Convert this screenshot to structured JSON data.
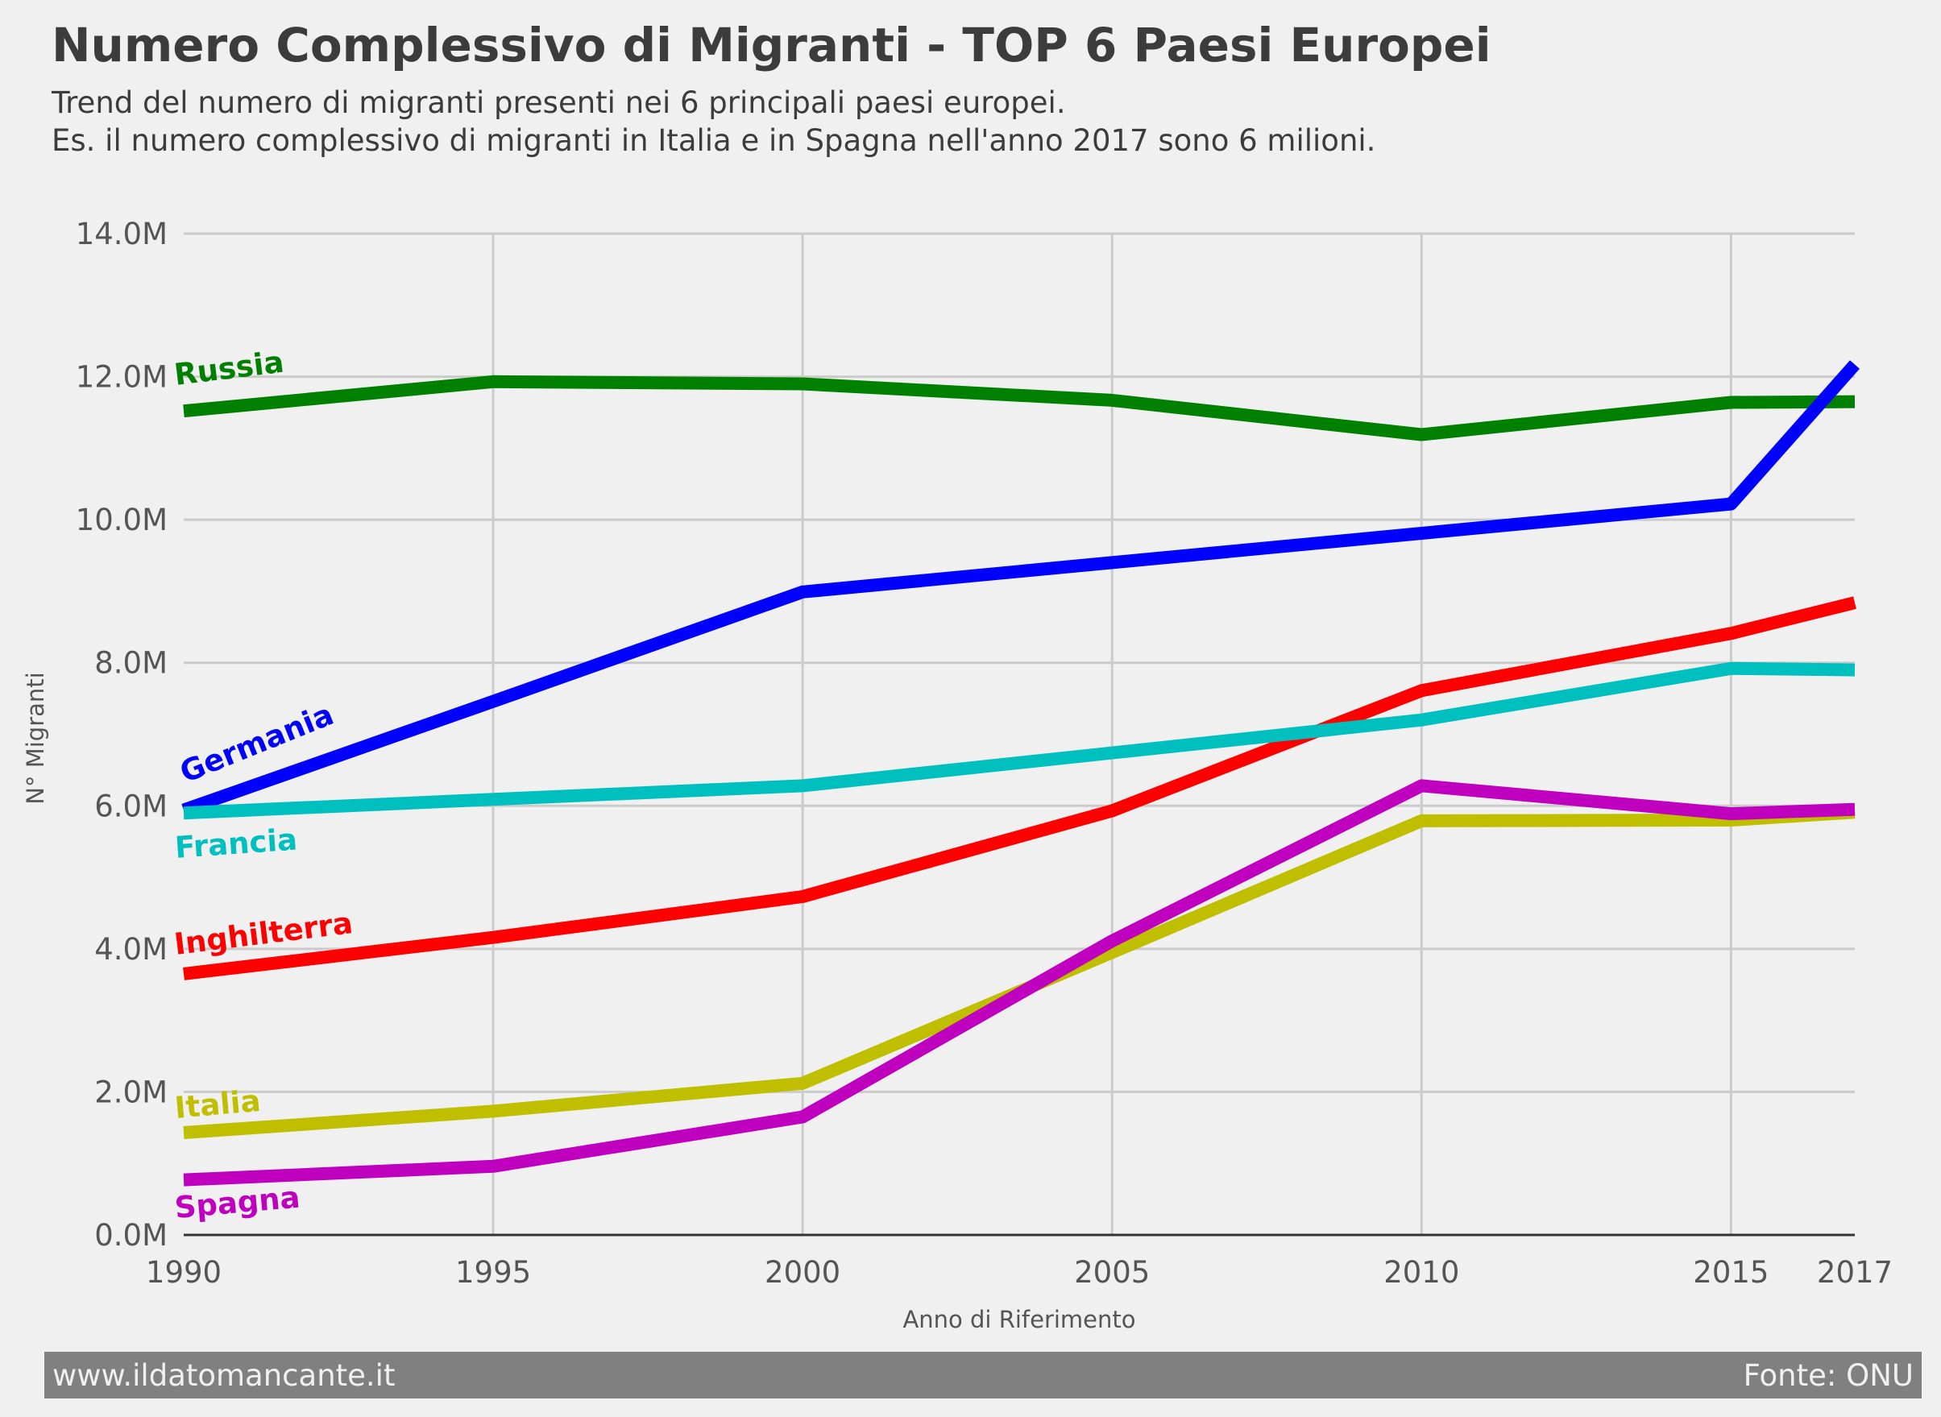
{
  "header": {
    "title": "Numero Complessivo di Migranti - TOP 6 Paesi Europei",
    "subtitle_line1": "Trend del numero di migranti presenti nei 6 principali paesi europei.",
    "subtitle_line2": "Es. il numero complessivo di migranti in Italia e in Spagna nell'anno 2017 sono 6 milioni."
  },
  "footer": {
    "left": "www.ildatomancante.it",
    "right": "Fonte: ONU"
  },
  "chart_data": {
    "type": "line",
    "title": "Numero Complessivo di Migranti - TOP 6 Paesi Europei",
    "xlabel": "Anno di Riferimento",
    "ylabel": "N° Migranti",
    "xlim": [
      1990,
      2017
    ],
    "ylim": [
      0,
      14000000
    ],
    "x_ticks": [
      1990,
      1995,
      2000,
      2005,
      2010,
      2015,
      2017
    ],
    "y_ticks": [
      0,
      2000000,
      4000000,
      6000000,
      8000000,
      10000000,
      12000000,
      14000000
    ],
    "y_tick_labels": [
      "0.0M",
      "2.0M",
      "4.0M",
      "6.0M",
      "8.0M",
      "10.0M",
      "12.0M",
      "14.0M"
    ],
    "grid": true,
    "legend": "inline labels at left",
    "x": [
      1990,
      1995,
      2000,
      2005,
      2010,
      2015,
      2017
    ],
    "series": [
      {
        "name": "Russia",
        "color": "#008000",
        "values": [
          11520000,
          11930000,
          11900000,
          11670000,
          11190000,
          11640000,
          11650000
        ]
      },
      {
        "name": "Germania",
        "color": "#0000ff",
        "values": [
          5940000,
          7460000,
          8990000,
          9400000,
          9810000,
          10220000,
          12170000
        ]
      },
      {
        "name": "Inghilterra",
        "color": "#ff0000",
        "values": [
          3650000,
          4160000,
          4730000,
          5930000,
          7610000,
          8410000,
          8840000
        ]
      },
      {
        "name": "Francia",
        "color": "#00bfbf",
        "values": [
          5900000,
          6090000,
          6280000,
          6740000,
          7200000,
          7920000,
          7900000
        ]
      },
      {
        "name": "Italia",
        "color": "#bfbf00",
        "values": [
          1430000,
          1730000,
          2120000,
          3950000,
          5790000,
          5800000,
          5910000
        ]
      },
      {
        "name": "Spagna",
        "color": "#bf00bf",
        "values": [
          770000,
          960000,
          1650000,
          4110000,
          6280000,
          5890000,
          5950000
        ]
      }
    ]
  }
}
